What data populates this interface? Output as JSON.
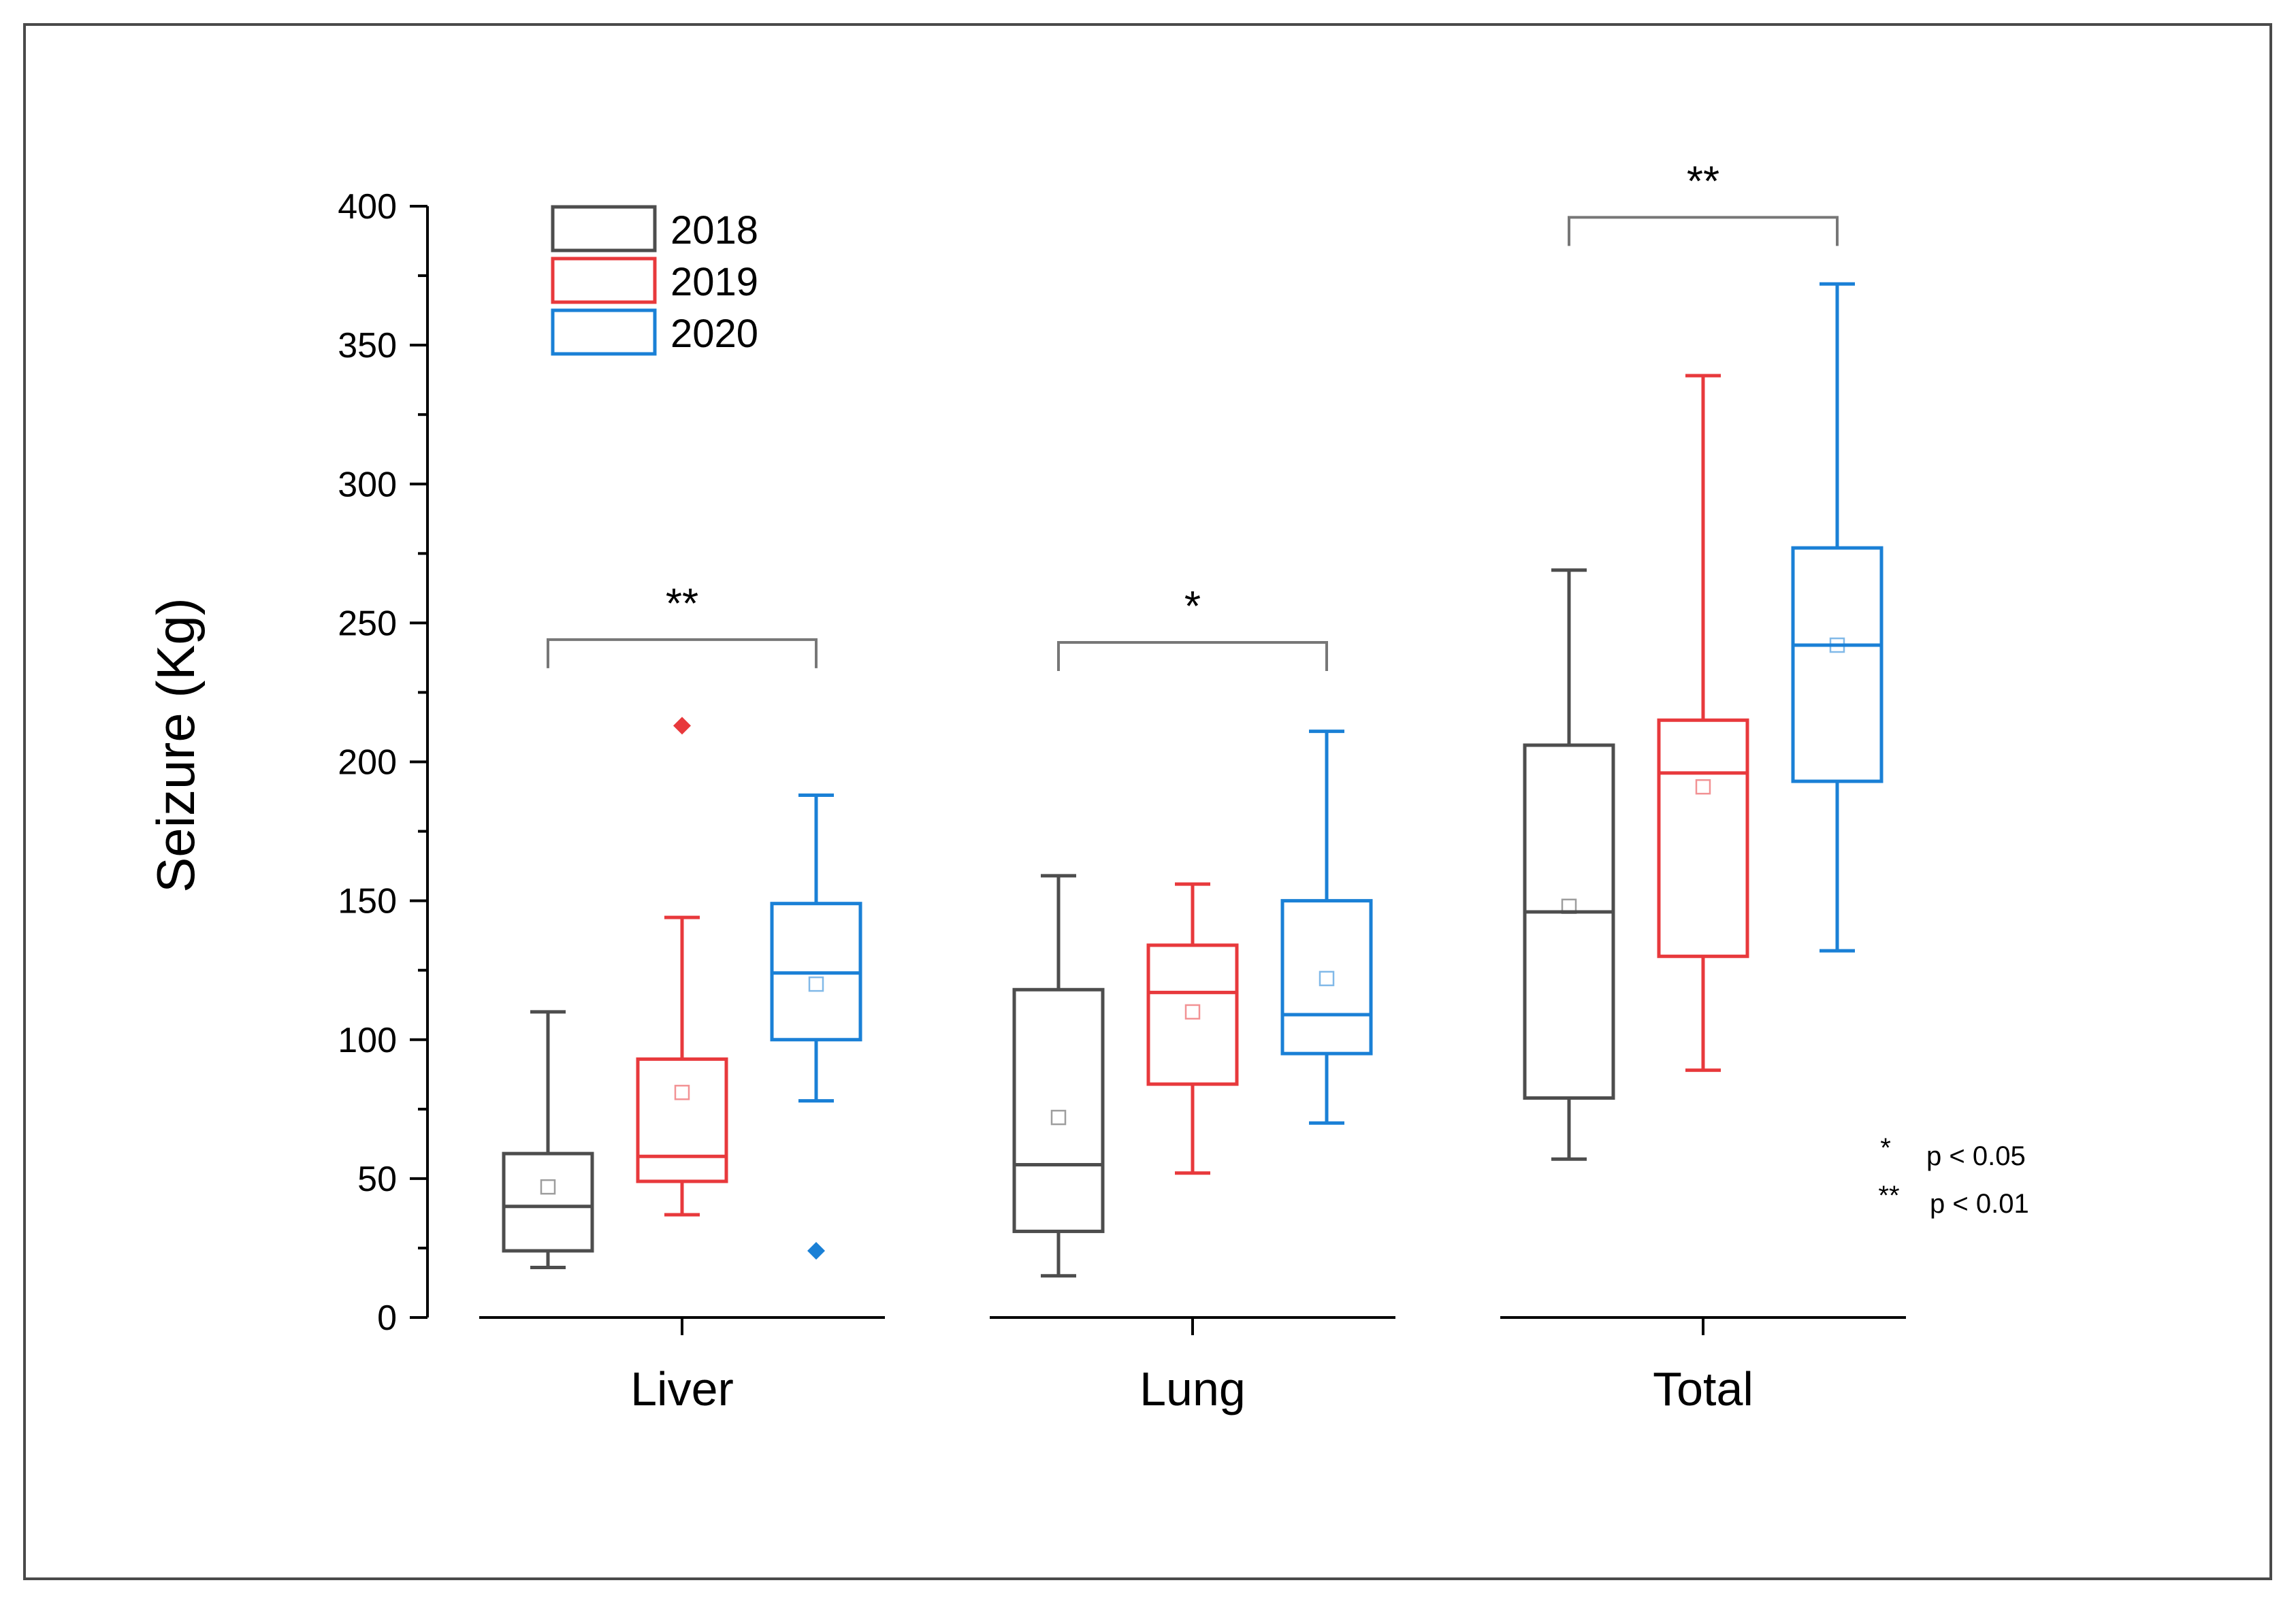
{
  "chart_data": {
    "type": "boxplot",
    "title": "",
    "xlabel": "",
    "ylabel": "Seizure (Kg)",
    "ylim": [
      0,
      400
    ],
    "yticks": [
      0,
      50,
      100,
      150,
      200,
      250,
      300,
      350,
      400
    ],
    "categories": [
      "Liver",
      "Lung",
      "Total"
    ],
    "legend_position": "top-left",
    "series": [
      {
        "name": "2018",
        "color": "#4d4d4d",
        "boxes": [
          {
            "whisker_low": 18,
            "q1": 24,
            "median": 40,
            "q3": 59,
            "whisker_high": 110,
            "mean": 47,
            "outliers": []
          },
          {
            "whisker_low": 15,
            "q1": 31,
            "median": 55,
            "q3": 118,
            "whisker_high": 159,
            "mean": 72,
            "outliers": []
          },
          {
            "whisker_low": 57,
            "q1": 79,
            "median": 146,
            "q3": 206,
            "whisker_high": 269,
            "mean": 148,
            "outliers": []
          }
        ]
      },
      {
        "name": "2019",
        "color": "#e8393c",
        "boxes": [
          {
            "whisker_low": 37,
            "q1": 49,
            "median": 58,
            "q3": 93,
            "whisker_high": 144,
            "mean": 81,
            "outliers": [
              213
            ]
          },
          {
            "whisker_low": 52,
            "q1": 84,
            "median": 117,
            "q3": 134,
            "whisker_high": 156,
            "mean": 110,
            "outliers": []
          },
          {
            "whisker_low": 89,
            "q1": 130,
            "median": 196,
            "q3": 215,
            "whisker_high": 339,
            "mean": 191,
            "outliers": []
          }
        ]
      },
      {
        "name": "2020",
        "color": "#1a80d6",
        "boxes": [
          {
            "whisker_low": 78,
            "q1": 100,
            "median": 124,
            "q3": 149,
            "whisker_high": 188,
            "mean": 120,
            "outliers": [
              24
            ]
          },
          {
            "whisker_low": 70,
            "q1": 95,
            "median": 109,
            "q3": 150,
            "whisker_high": 211,
            "mean": 122,
            "outliers": []
          },
          {
            "whisker_low": 132,
            "q1": 193,
            "median": 242,
            "q3": 277,
            "whisker_high": 372,
            "mean": 242,
            "outliers": []
          }
        ]
      }
    ],
    "significance": [
      {
        "category": "Liver",
        "label": "**",
        "bracket_y": 244
      },
      {
        "category": "Lung",
        "label": "*",
        "bracket_y": 243
      },
      {
        "category": "Total",
        "label": "**",
        "bracket_y": 396
      }
    ],
    "annotations": [
      {
        "stars": "*",
        "text": "p < 0.05"
      },
      {
        "stars": "**",
        "text": "p < 0.01"
      }
    ]
  }
}
